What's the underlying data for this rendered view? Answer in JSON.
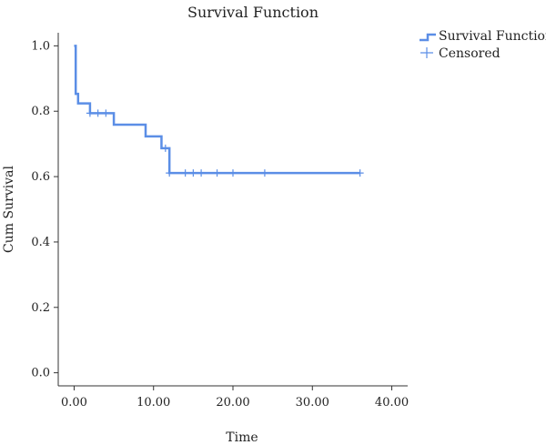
{
  "chart_data": {
    "type": "line",
    "title": "Survival Function",
    "xlabel": "Time",
    "ylabel": "Cum Survival",
    "xlim": [
      -2,
      42
    ],
    "ylim": [
      -0.04,
      1.04
    ],
    "x_ticks": [
      "0.00",
      "10.00",
      "20.00",
      "30.00",
      "40.00"
    ],
    "y_ticks": [
      "0.0",
      "0.2",
      "0.4",
      "0.6",
      "0.8",
      "1.0"
    ],
    "grid": false,
    "legend_position": "top-right",
    "colors": {
      "line": "#5b8ee6",
      "axis": "#333333",
      "text": "#222222"
    },
    "series": [
      {
        "name": "Survival Function",
        "style": "step",
        "x": [
          0,
          0.2,
          0.5,
          2,
          5,
          9,
          11,
          12,
          36
        ],
        "y": [
          1.0,
          0.853,
          0.824,
          0.794,
          0.759,
          0.723,
          0.687,
          0.611,
          0.611
        ]
      },
      {
        "name": "Censored",
        "style": "marker-plus",
        "x": [
          2,
          3,
          4,
          11.5,
          12,
          14,
          15,
          16,
          18,
          20,
          24,
          36
        ],
        "y": [
          0.794,
          0.794,
          0.794,
          0.687,
          0.611,
          0.611,
          0.611,
          0.611,
          0.611,
          0.611,
          0.611,
          0.611
        ]
      }
    ]
  }
}
